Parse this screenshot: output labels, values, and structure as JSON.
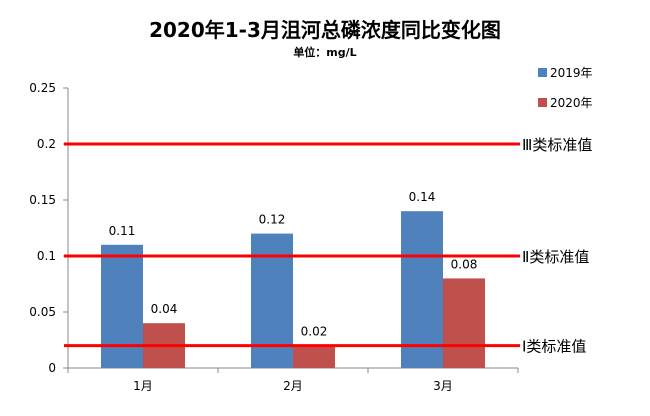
{
  "chart_data": {
    "type": "bar",
    "title": "2020年1-3月沮河总磷浓度同比变化图",
    "subtitle": "单位：mg/L",
    "categories": [
      "1月",
      "2月",
      "3月"
    ],
    "series": [
      {
        "name": "2019年",
        "values": [
          0.11,
          0.12,
          0.14
        ],
        "labels": [
          "0.11",
          "0.12",
          "0.14"
        ],
        "color": "#4f81bd"
      },
      {
        "name": "2020年",
        "values": [
          0.04,
          0.02,
          0.08
        ],
        "labels": [
          "0.04",
          "0.02",
          "0.08"
        ],
        "color": "#c0504d"
      }
    ],
    "ylim": [
      0,
      0.25
    ],
    "yticks": [
      0,
      0.05,
      0.1,
      0.15,
      0.2,
      0.25
    ],
    "ytick_labels": [
      "0",
      "0.05",
      "0.1",
      "0.15",
      "0.2",
      "0.25"
    ],
    "reference_lines": [
      {
        "value": 0.2,
        "label": "Ⅲ类标准值",
        "color": "#ff0000"
      },
      {
        "value": 0.1,
        "label": "Ⅱ类标准值",
        "color": "#ff0000"
      },
      {
        "value": 0.02,
        "label": "Ⅰ类标准值",
        "color": "#ff0000"
      }
    ],
    "grid": false,
    "legend_position": "top-right"
  }
}
